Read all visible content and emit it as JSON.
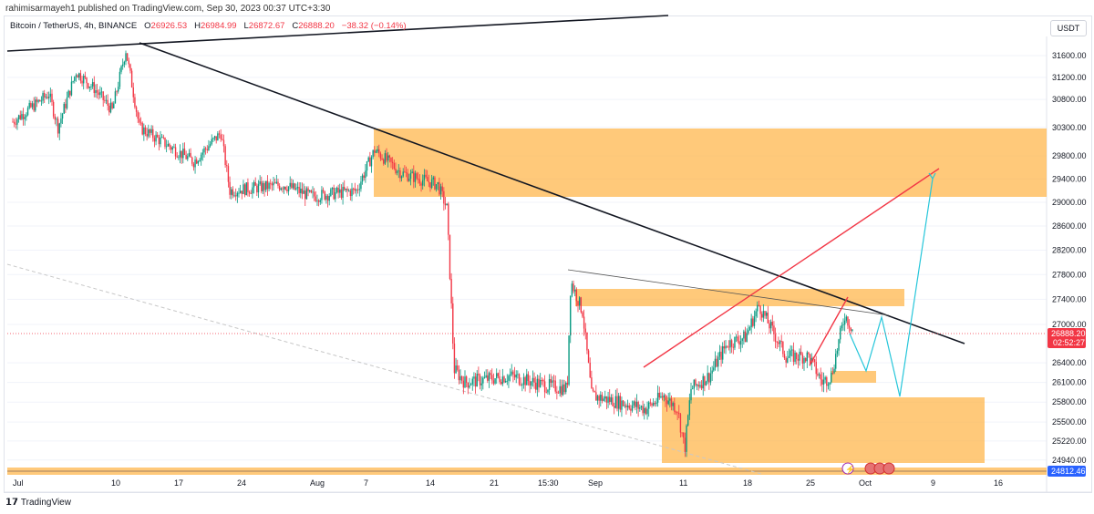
{
  "published": "rahimisarmayeh1 published on TradingView.com, Sep 30, 2023 00:37 UTC+3:30",
  "legend": {
    "symbol": "Bitcoin / TetherUS, 4h, BINANCE",
    "o_label": "O",
    "o": "26926.53",
    "h_label": "H",
    "h": "26984.99",
    "l_label": "L",
    "l": "26872.67",
    "c_label": "C",
    "c": "26888.20",
    "change": "−38.32 (−0.14%)"
  },
  "currency_button": "USDT",
  "price_axis": {
    "scale": "log",
    "ticks": [
      "31600.00",
      "31200.00",
      "30800.00",
      "30300.00",
      "29800.00",
      "29400.00",
      "29000.00",
      "28600.00",
      "28200.00",
      "27800.00",
      "27400.00",
      "27000.00",
      "26400.00",
      "26100.00",
      "25800.00",
      "25500.00",
      "25220.00",
      "24940.00"
    ],
    "last_price": "26888.20",
    "countdown": "02:52:27",
    "marker_price": "24812.46"
  },
  "time_axis": [
    "Jul",
    "10",
    "17",
    "24",
    "Aug",
    "7",
    "14",
    "21",
    "15:30",
    "Sep",
    "11",
    "18",
    "25",
    "Oct",
    "9",
    "16"
  ],
  "colors": {
    "up": "#089981",
    "down": "#f23645",
    "zone": "#ffb74d",
    "trend": "#131722",
    "red_line": "#f23645",
    "projection": "#26c6da",
    "last_price_bg": "#f23645",
    "marker_bg": "#2962ff"
  },
  "events": [
    "lightning-icon",
    "us-flag-icon",
    "us-flag-icon",
    "us-flag-icon"
  ],
  "footer": {
    "logo": "TradingView"
  }
}
